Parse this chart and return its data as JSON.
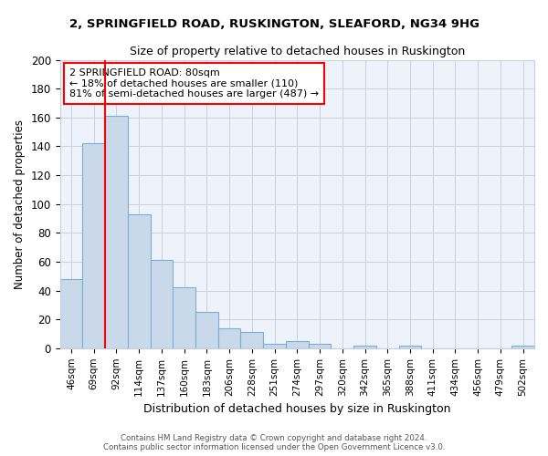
{
  "title1": "2, SPRINGFIELD ROAD, RUSKINGTON, SLEAFORD, NG34 9HG",
  "title2": "Size of property relative to detached houses in Ruskington",
  "xlabel": "Distribution of detached houses by size in Ruskington",
  "ylabel": "Number of detached properties",
  "bar_labels": [
    "46sqm",
    "69sqm",
    "92sqm",
    "114sqm",
    "137sqm",
    "160sqm",
    "183sqm",
    "206sqm",
    "228sqm",
    "251sqm",
    "274sqm",
    "297sqm",
    "320sqm",
    "342sqm",
    "365sqm",
    "388sqm",
    "411sqm",
    "434sqm",
    "456sqm",
    "479sqm",
    "502sqm"
  ],
  "bar_values": [
    48,
    142,
    161,
    93,
    61,
    42,
    25,
    14,
    11,
    3,
    5,
    3,
    0,
    2,
    0,
    2,
    0,
    0,
    0,
    0,
    2
  ],
  "bar_color": "#c9d9ea",
  "bar_edge_color": "#7aafd4",
  "red_line_x": 1.5,
  "annotation_line1": "2 SPRINGFIELD ROAD: 80sqm",
  "annotation_line2": "← 18% of detached houses are smaller (110)",
  "annotation_line3": "81% of semi-detached houses are larger (487) →",
  "annotation_box_color": "white",
  "annotation_box_edge": "red",
  "footer1": "Contains HM Land Registry data © Crown copyright and database right 2024.",
  "footer2": "Contains public sector information licensed under the Open Government Licence v3.0.",
  "bg_color": "#ffffff",
  "plot_bg_color": "#eef2fb",
  "grid_color": "#c8d0e0",
  "ylim": [
    0,
    200
  ],
  "yticks": [
    0,
    20,
    40,
    60,
    80,
    100,
    120,
    140,
    160,
    180,
    200
  ]
}
